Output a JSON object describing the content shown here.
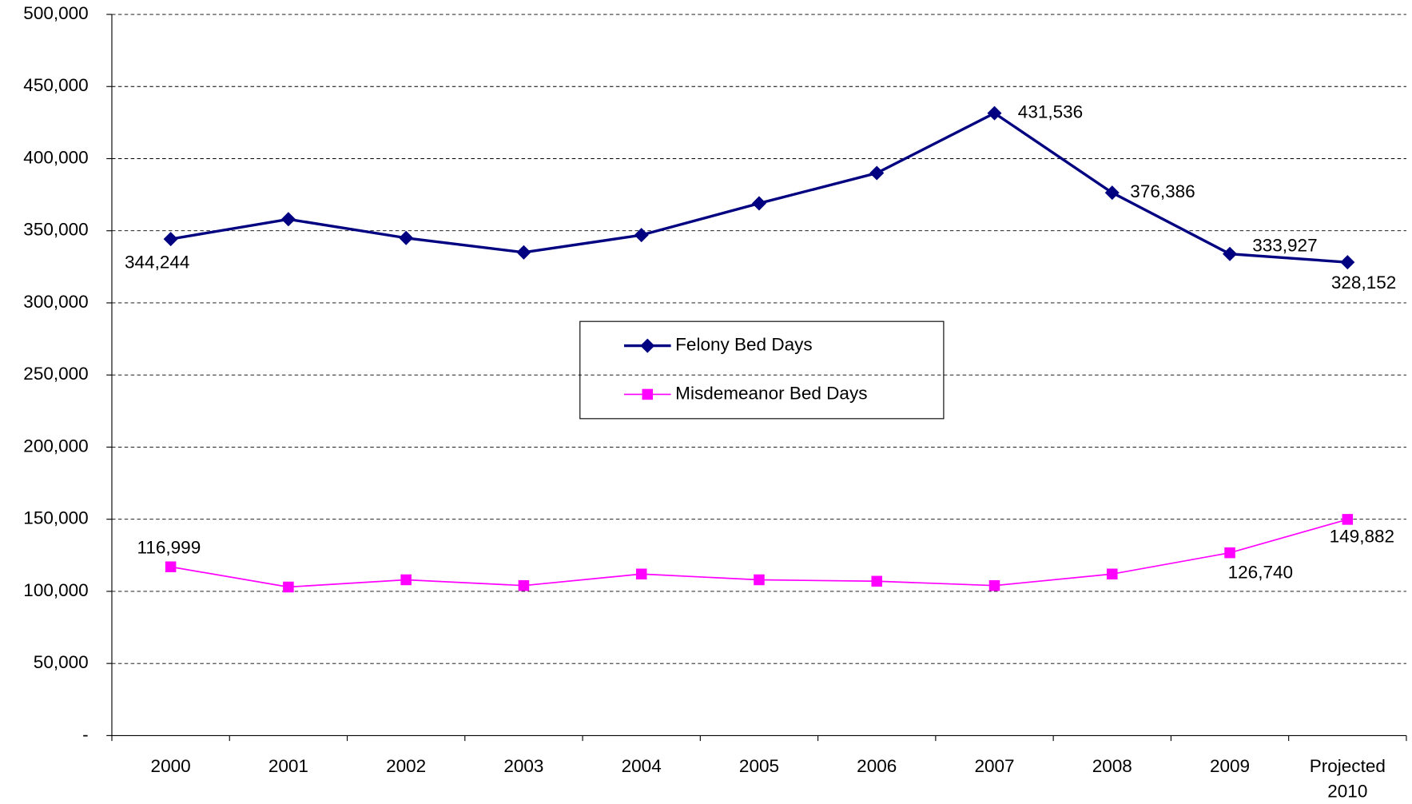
{
  "chart_data": {
    "type": "line",
    "categories": [
      "2000",
      "2001",
      "2002",
      "2003",
      "2004",
      "2005",
      "2006",
      "2007",
      "2008",
      "2009",
      "Projected 2010"
    ],
    "series": [
      {
        "name": "Felony Bed Days",
        "color": "#000080",
        "marker": "diamond",
        "values": [
          344244,
          358000,
          345000,
          335000,
          347000,
          369000,
          390000,
          431536,
          376386,
          333927,
          328152
        ],
        "value_labels": [
          "344,244",
          null,
          null,
          null,
          null,
          null,
          null,
          "431,536",
          "376,386",
          "333,927",
          "328,152"
        ]
      },
      {
        "name": "Misdemeanor Bed Days",
        "color": "#ff00ff",
        "marker": "square",
        "values": [
          116999,
          103000,
          108000,
          104000,
          112000,
          108000,
          107000,
          104000,
          112000,
          126740,
          149882
        ],
        "value_labels": [
          "116,999",
          null,
          null,
          null,
          null,
          null,
          null,
          null,
          null,
          "126,740",
          "149,882"
        ]
      }
    ],
    "ylim": [
      0,
      500000
    ],
    "yticks": [
      {
        "value": 0,
        "label": "-"
      },
      {
        "value": 50000,
        "label": "50,000"
      },
      {
        "value": 100000,
        "label": "100,000"
      },
      {
        "value": 150000,
        "label": "150,000"
      },
      {
        "value": 200000,
        "label": "200,000"
      },
      {
        "value": 250000,
        "label": "250,000"
      },
      {
        "value": 300000,
        "label": "300,000"
      },
      {
        "value": 350000,
        "label": "350,000"
      },
      {
        "value": 400000,
        "label": "400,000"
      },
      {
        "value": 450000,
        "label": "450,000"
      },
      {
        "value": 500000,
        "label": "500,000"
      }
    ],
    "grid": true
  }
}
